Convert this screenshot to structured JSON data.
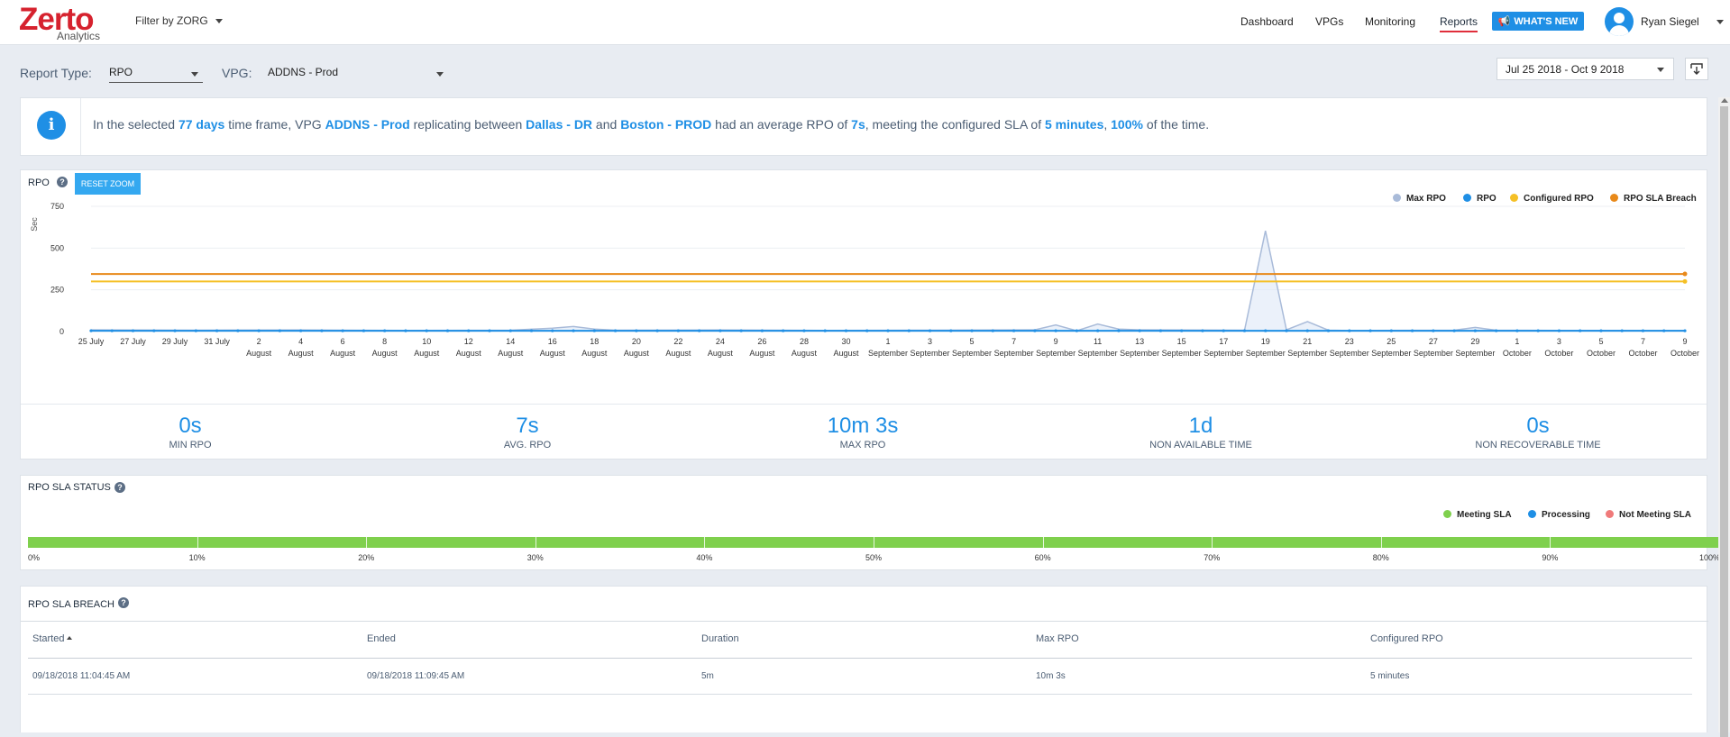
{
  "app": {
    "logo_text": "Zerto",
    "logo_subtitle": "Analytics",
    "filter_label": "Filter by ZORG"
  },
  "nav": {
    "items": [
      "Dashboard",
      "VPGs",
      "Monitoring",
      "Reports"
    ],
    "active": "Reports",
    "whats_new": "WHAT'S NEW",
    "user_name": "Ryan Siegel"
  },
  "filters": {
    "report_type_label": "Report Type:",
    "report_type_value": "RPO",
    "vpg_label": "VPG:",
    "vpg_value": "ADDNS - Prod",
    "date_range": "Jul 25 2018 - Oct 9 2018"
  },
  "info": {
    "p1": "In the selected ",
    "days": "77 days",
    "p2": " time frame, VPG ",
    "vpg": "ADDNS - Prod",
    "p3": " replicating between ",
    "src": "Dallas - DR",
    "p4": " and ",
    "dst": "Boston - PROD",
    "p5": " had an average RPO of ",
    "avg": "7s",
    "p6": ", meeting the configured SLA of ",
    "sla": "5 minutes",
    "p7": ", ",
    "pct": "100%",
    "p8": " of the time."
  },
  "rpo_panel": {
    "title": "RPO",
    "help": "?",
    "reset_zoom": "RESET ZOOM"
  },
  "chart_data": {
    "type": "line",
    "ylabel": "Sec",
    "ylim": [
      0,
      750
    ],
    "yticks": [
      "750",
      "500",
      "250",
      "0"
    ],
    "legend": [
      {
        "name": "Max RPO",
        "color": "#a9bbd9"
      },
      {
        "name": "RPO",
        "color": "#1f8fe5"
      },
      {
        "name": "Configured RPO",
        "color": "#f5c026"
      },
      {
        "name": "RPO SLA Breach",
        "color": "#e8891a"
      }
    ],
    "xlabels": [
      [
        "25 July",
        ""
      ],
      [
        "27 July",
        ""
      ],
      [
        "29 July",
        ""
      ],
      [
        "31 July",
        ""
      ],
      [
        "2",
        "August"
      ],
      [
        "4",
        "August"
      ],
      [
        "6",
        "August"
      ],
      [
        "8",
        "August"
      ],
      [
        "10",
        "August"
      ],
      [
        "12",
        "August"
      ],
      [
        "14",
        "August"
      ],
      [
        "16",
        "August"
      ],
      [
        "18",
        "August"
      ],
      [
        "20",
        "August"
      ],
      [
        "22",
        "August"
      ],
      [
        "24",
        "August"
      ],
      [
        "26",
        "August"
      ],
      [
        "28",
        "August"
      ],
      [
        "30",
        "August"
      ],
      [
        "1",
        "September"
      ],
      [
        "3",
        "September"
      ],
      [
        "5",
        "September"
      ],
      [
        "7",
        "September"
      ],
      [
        "9",
        "September"
      ],
      [
        "11",
        "September"
      ],
      [
        "13",
        "September"
      ],
      [
        "15",
        "September"
      ],
      [
        "17",
        "September"
      ],
      [
        "19",
        "September"
      ],
      [
        "21",
        "September"
      ],
      [
        "23",
        "September"
      ],
      [
        "25",
        "September"
      ],
      [
        "27",
        "September"
      ],
      [
        "29",
        "September"
      ],
      [
        "1",
        "October"
      ],
      [
        "3",
        "October"
      ],
      [
        "5",
        "October"
      ],
      [
        "7",
        "October"
      ],
      [
        "9",
        "October"
      ]
    ],
    "x_days": [
      0,
      2,
      4,
      6,
      8,
      10,
      12,
      14,
      16,
      18,
      20,
      22,
      24,
      26,
      28,
      30,
      32,
      34,
      36,
      38,
      40,
      42,
      44,
      46,
      48,
      50,
      52,
      54,
      56,
      58,
      60,
      62,
      64,
      66,
      68,
      70,
      72,
      74,
      76
    ],
    "series": [
      {
        "name": "Max RPO",
        "x": [
          0,
          5,
          10,
          15,
          20,
          22,
          23,
          24,
          25,
          30,
          35,
          40,
          45,
          46,
          47,
          48,
          49,
          50,
          55,
          56,
          57,
          58,
          59,
          60,
          65,
          66,
          67,
          70,
          76
        ],
        "y": [
          10,
          8,
          9,
          7,
          8,
          20,
          30,
          15,
          8,
          9,
          7,
          8,
          10,
          40,
          5,
          45,
          15,
          10,
          8,
          603,
          10,
          60,
          8,
          6,
          8,
          25,
          8,
          7,
          6
        ]
      },
      {
        "name": "RPO",
        "x": [
          0,
          76
        ],
        "y": [
          5,
          5
        ]
      },
      {
        "name": "Configured RPO",
        "x": [
          0,
          76
        ],
        "y": [
          300,
          300
        ]
      },
      {
        "name": "RPO SLA Breach",
        "x": [
          0,
          76
        ],
        "y": [
          345,
          345
        ]
      }
    ]
  },
  "stats": [
    {
      "value": "0s",
      "label": "MIN RPO"
    },
    {
      "value": "7s",
      "label": "AVG. RPO"
    },
    {
      "value": "10m 3s",
      "label": "MAX RPO"
    },
    {
      "value": "1d",
      "label": "NON AVAILABLE TIME"
    },
    {
      "value": "0s",
      "label": "NON RECOVERABLE TIME"
    }
  ],
  "sla_status": {
    "title": "RPO SLA STATUS",
    "help": "?",
    "legend": [
      {
        "name": "Meeting SLA",
        "color": "#7fd04d"
      },
      {
        "name": "Processing",
        "color": "#1f8fe5"
      },
      {
        "name": "Not Meeting SLA",
        "color": "#f07a7a"
      }
    ],
    "meeting_fraction": 1.0,
    "ticks": [
      "0%",
      "10%",
      "20%",
      "30%",
      "40%",
      "50%",
      "60%",
      "70%",
      "80%",
      "90%",
      "100%"
    ]
  },
  "breach": {
    "title": "RPO SLA BREACH",
    "help": "?",
    "columns": [
      "Started",
      "Ended",
      "Duration",
      "Max RPO",
      "Configured RPO"
    ],
    "rows": [
      [
        "09/18/2018 11:04:45 AM",
        "09/18/2018 11:09:45 AM",
        "5m",
        "10m 3s",
        "5 minutes"
      ]
    ]
  }
}
